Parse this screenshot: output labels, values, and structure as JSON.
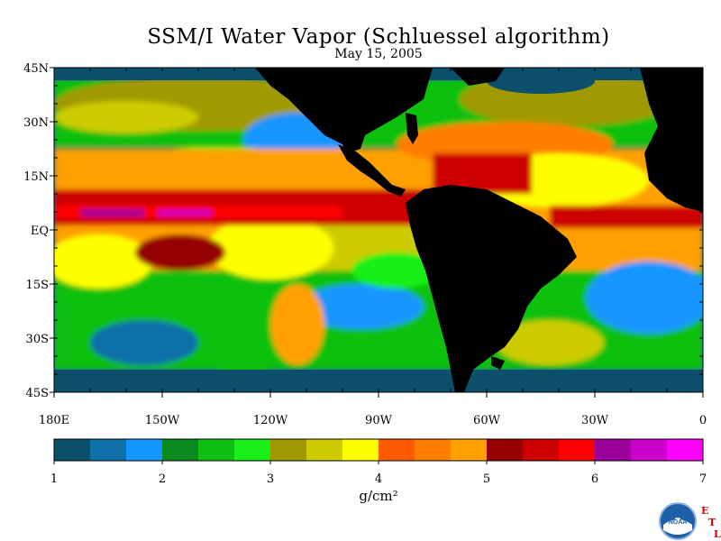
{
  "title": "SSM/I Water Vapor (Schluessel algorithm)",
  "date": "May 15, 2005",
  "map": {
    "lon_range": [
      -180,
      0
    ],
    "lat_range": [
      -45,
      45
    ],
    "lat_labels": [
      "45N",
      "30N",
      "15N",
      "EQ",
      "15S",
      "30S",
      "45S"
    ],
    "lon_labels": [
      "180E",
      "150W",
      "120W",
      "90W",
      "60W",
      "30W",
      "0"
    ]
  },
  "colorbar": {
    "min": 1,
    "max": 7,
    "tick_labels": [
      "1",
      "2",
      "3",
      "4",
      "5",
      "6",
      "7"
    ],
    "unit": "g/cm²",
    "colors": [
      "#0b4f6c",
      "#0f6fa8",
      "#1496ff",
      "#0a8a1e",
      "#10c010",
      "#18f018",
      "#a09a00",
      "#cccc00",
      "#ffff00",
      "#ff5a00",
      "#ff7e00",
      "#ffa000",
      "#950000",
      "#cc0000",
      "#ff0000",
      "#9a0099",
      "#cc00cc",
      "#ff00ff"
    ]
  },
  "logo": {
    "name": "NOAA",
    "etl_letters": [
      "E",
      "T",
      "L"
    ]
  }
}
